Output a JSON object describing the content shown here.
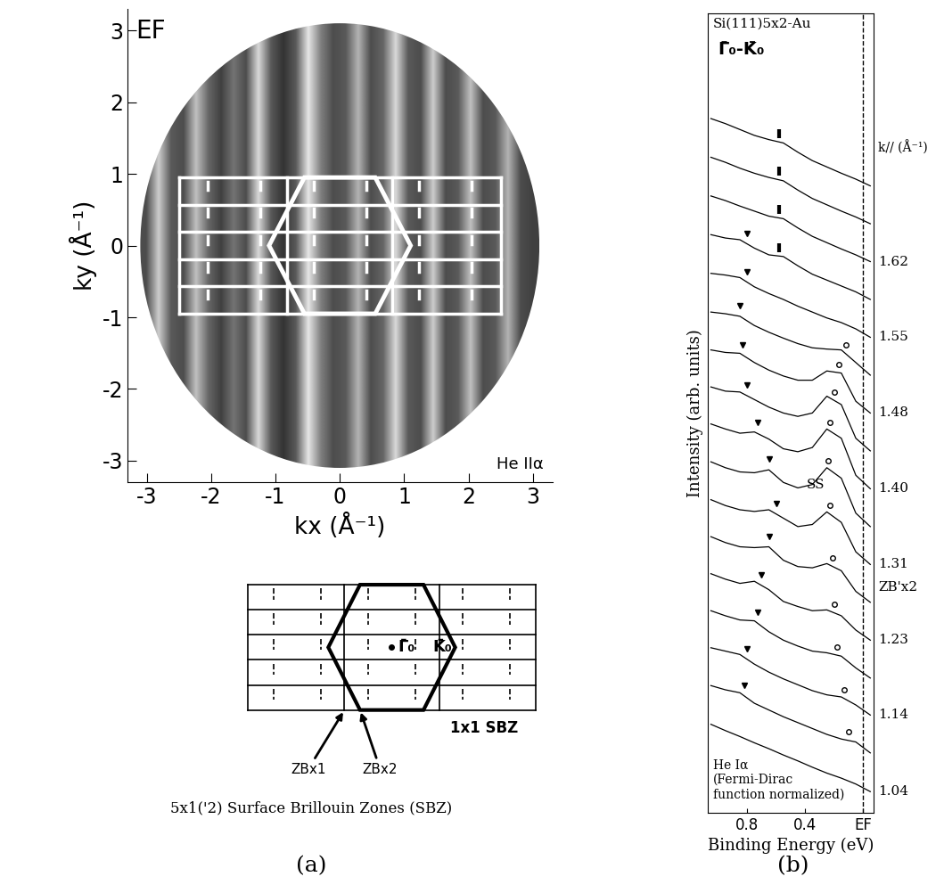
{
  "chart_data": [
    {
      "type": "heatmap",
      "label": "(a)",
      "title": "EF",
      "annotation": "He IIα",
      "xlabel": "kx (Å⁻¹)",
      "ylabel": "ky (Å⁻¹)",
      "xlim": [
        -3.3,
        3.3
      ],
      "ylim": [
        -3.3,
        3.3
      ],
      "xticks": [
        -3,
        -2,
        -1,
        0,
        1,
        2,
        3
      ],
      "yticks": [
        -3,
        -2,
        -1,
        0,
        1,
        2,
        3
      ],
      "map": {
        "kx": [
          -3.1,
          -2.9,
          -2.7,
          -2.5,
          -2.3,
          -2.1,
          -1.9,
          -1.7,
          -1.5,
          -1.3,
          -1.1,
          -0.9,
          -0.7,
          -0.5,
          -0.3,
          -0.1,
          0.1,
          0.3,
          0.5,
          0.7,
          0.9,
          1.1,
          1.3,
          1.5,
          1.7,
          1.9,
          2.1,
          2.3,
          2.5,
          2.7,
          2.9,
          3.1
        ],
        "intensity": [
          0.3,
          0.8,
          0.35,
          0.3,
          0.75,
          0.4,
          0.25,
          0.45,
          0.3,
          0.85,
          0.35,
          0.2,
          0.35,
          0.9,
          0.5,
          0.3,
          0.35,
          0.7,
          0.3,
          0.4,
          0.85,
          0.35,
          0.3,
          0.8,
          0.3,
          0.35,
          0.75,
          0.3,
          0.35,
          0.7,
          0.3,
          0.25
        ],
        "radius": 3.1,
        "range": [
          0,
          1
        ]
      },
      "overlay": {
        "color": "#ffffff",
        "rect_kx": [
          -2.5,
          2.5
        ],
        "row_ky": [
          -0.95,
          -0.57,
          -0.19,
          0.19,
          0.57,
          0.95
        ],
        "zb_x1_kx": [
          -0.82,
          0.82
        ],
        "zb_x2_kx": [
          -2.05,
          -1.23,
          -0.41,
          0.41,
          1.23,
          2.05
        ],
        "hexagon": [
          [
            -1.1,
            0
          ],
          [
            -0.55,
            0.95
          ],
          [
            0.55,
            0.95
          ],
          [
            1.1,
            0
          ],
          [
            0.55,
            -0.95
          ],
          [
            -0.55,
            -0.95
          ]
        ]
      },
      "schematic": {
        "color": "#000000",
        "gamma_label": "Γ̄₀",
        "k_label": "K̄₀",
        "sbz_label": "1x1 SBZ",
        "zb_x1_label": "ZBx1",
        "zb_x2_label": "ZBx2",
        "caption": "5x1('2) Surface Brillouin Zones (SBZ)"
      }
    },
    {
      "type": "line",
      "label": "(b)",
      "title": "Si(111)5x2-Au",
      "subtitle": "Γ̄₀-K̄₀",
      "annotation": "He Iα\n(Fermi-Dirac\nfunction normalized)",
      "k_label": "k// (Å⁻¹)",
      "xlabel": "Binding Energy (eV)",
      "ylabel": "Intensity (arb. units)",
      "xlim": [
        1.07,
        -0.07
      ],
      "xticks": [
        0.8,
        0.4,
        {
          "value": 0,
          "label": "EF"
        }
      ],
      "ylim": [
        -0.4,
        18.6
      ],
      "tick_labels": "x",
      "fermi_level": 0,
      "color": "#000000",
      "x": [
        1.05,
        0.95,
        0.85,
        0.75,
        0.65,
        0.55,
        0.45,
        0.35,
        0.25,
        0.15,
        0.05,
        -0.05
      ],
      "series": [
        {
          "name": "1.04",
          "offset": 0,
          "triangle": null,
          "circle": null,
          "bar": null,
          "values": [
            1.7,
            1.55,
            1.41,
            1.26,
            1.12,
            0.97,
            0.83,
            0.68,
            0.54,
            0.42,
            0.28,
            0.1
          ]
        },
        {
          "name": null,
          "offset": 0.9,
          "triangle": 0.82,
          "circle": 0.1,
          "bar": null,
          "values": [
            1.72,
            1.62,
            1.55,
            1.3,
            1.14,
            0.98,
            0.84,
            0.7,
            0.56,
            0.45,
            0.38,
            0.12
          ]
        },
        {
          "name": "1.14",
          "offset": 1.8,
          "triangle": 0.8,
          "circle": 0.13,
          "bar": null,
          "values": [
            1.72,
            1.64,
            1.56,
            1.33,
            1.14,
            0.98,
            0.84,
            0.7,
            0.6,
            0.55,
            0.36,
            0.12
          ]
        },
        {
          "name": null,
          "offset": 2.7,
          "triangle": 0.73,
          "circle": 0.18,
          "bar": null,
          "values": [
            1.7,
            1.58,
            1.48,
            1.46,
            1.2,
            1.0,
            0.86,
            0.74,
            0.7,
            0.62,
            0.34,
            0.1
          ]
        },
        {
          "name": "1.23",
          "offset": 3.6,
          "triangle": 0.7,
          "circle": 0.2,
          "bar": null,
          "values": [
            1.68,
            1.55,
            1.45,
            1.5,
            1.3,
            1.02,
            0.9,
            0.8,
            0.82,
            0.68,
            0.34,
            0.1
          ]
        },
        {
          "name": null,
          "note": "ZB'x2",
          "offset": 4.5,
          "triangle": 0.65,
          "circle": 0.21,
          "bar": null,
          "values": [
            1.66,
            1.52,
            1.42,
            1.4,
            1.42,
            1.1,
            0.95,
            0.92,
            1.02,
            0.85,
            0.36,
            0.1
          ]
        },
        {
          "name": "1.31",
          "peak_note": "SS",
          "offset": 5.4,
          "triangle": 0.6,
          "circle": 0.23,
          "bar": null,
          "values": [
            1.64,
            1.5,
            1.4,
            1.36,
            1.4,
            1.2,
            1.0,
            1.05,
            1.35,
            1.1,
            0.4,
            0.1
          ]
        },
        {
          "name": null,
          "offset": 6.3,
          "triangle": 0.65,
          "circle": 0.24,
          "bar": null,
          "values": [
            1.64,
            1.5,
            1.4,
            1.38,
            1.45,
            1.15,
            1.02,
            1.1,
            1.5,
            1.25,
            0.42,
            0.1
          ]
        },
        {
          "name": "1.40",
          "offset": 7.2,
          "triangle": 0.73,
          "circle": 0.23,
          "bar": null,
          "values": [
            1.64,
            1.52,
            1.42,
            1.45,
            1.28,
            1.05,
            0.98,
            1.08,
            1.52,
            1.3,
            0.42,
            0.1
          ]
        },
        {
          "name": null,
          "offset": 8.1,
          "triangle": 0.8,
          "circle": 0.2,
          "bar": null,
          "values": [
            1.62,
            1.52,
            1.5,
            1.32,
            1.14,
            1.0,
            0.92,
            1.0,
            1.4,
            1.2,
            0.4,
            0.1
          ]
        },
        {
          "name": "1.48",
          "offset": 9.0,
          "triangle": 0.83,
          "circle": 0.17,
          "bar": null,
          "values": [
            1.6,
            1.54,
            1.52,
            1.3,
            1.12,
            0.98,
            0.88,
            0.88,
            1.1,
            1.05,
            0.38,
            0.1
          ]
        },
        {
          "name": null,
          "offset": 9.9,
          "triangle": 0.85,
          "circle": 0.12,
          "bar": null,
          "values": [
            1.6,
            1.56,
            1.5,
            1.28,
            1.12,
            0.98,
            0.85,
            0.75,
            0.72,
            0.7,
            0.4,
            0.1
          ]
        },
        {
          "name": "1.55",
          "offset": 10.8,
          "triangle": 0.8,
          "circle": null,
          "bar": null,
          "values": [
            1.62,
            1.58,
            1.52,
            1.3,
            1.14,
            1.0,
            0.84,
            0.7,
            0.56,
            0.45,
            0.3,
            0.1
          ]
        },
        {
          "name": null,
          "offset": 11.7,
          "triangle": 0.8,
          "circle": null,
          "bar": 0.58,
          "values": [
            1.64,
            1.56,
            1.52,
            1.32,
            1.16,
            1.12,
            0.9,
            0.7,
            0.56,
            0.42,
            0.28,
            0.1
          ]
        },
        {
          "name": "1.62",
          "offset": 12.6,
          "triangle": null,
          "circle": null,
          "bar": 0.58,
          "values": [
            1.66,
            1.55,
            1.42,
            1.3,
            1.18,
            1.12,
            0.9,
            0.7,
            0.55,
            0.4,
            0.26,
            0.1
          ]
        },
        {
          "name": null,
          "offset": 13.5,
          "triangle": null,
          "circle": null,
          "bar": 0.58,
          "values": [
            1.68,
            1.56,
            1.42,
            1.3,
            1.2,
            1.12,
            0.9,
            0.7,
            0.55,
            0.4,
            0.26,
            0.1
          ]
        },
        {
          "name": null,
          "offset": 14.4,
          "triangle": null,
          "circle": null,
          "bar": 0.58,
          "values": [
            1.7,
            1.58,
            1.44,
            1.3,
            1.2,
            1.12,
            0.9,
            0.7,
            0.55,
            0.4,
            0.26,
            0.1
          ]
        }
      ]
    }
  ]
}
